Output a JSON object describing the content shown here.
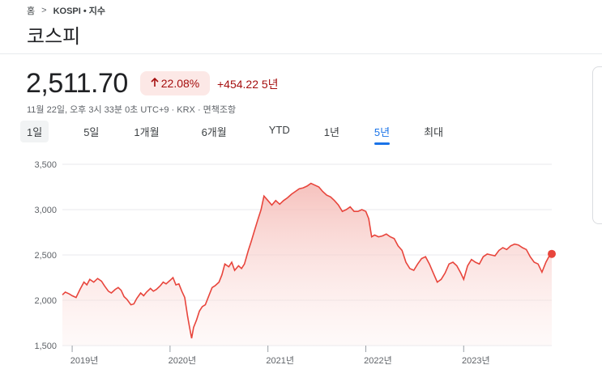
{
  "breadcrumb": {
    "home": "홈",
    "separator": ">",
    "path": "KOSPI • 지수"
  },
  "title": "코스피",
  "quote": {
    "price": "2,511.70",
    "change_percent": "22.08%",
    "change_abs": "+454.22 5년",
    "meta": "11월 22일, 오후 3시 33분 0초 UTC+9 · KRX · 면책조항"
  },
  "tabs": [
    {
      "label": "1일",
      "state": "highlight"
    },
    {
      "label": "5일"
    },
    {
      "label": "1개월"
    },
    {
      "label": "6개월"
    },
    {
      "label": "YTD"
    },
    {
      "label": "1년"
    },
    {
      "label": "5년",
      "state": "selected"
    },
    {
      "label": "최대"
    }
  ],
  "colors": {
    "negative_text": "#a50e0e",
    "chip_bg": "#fce8e6",
    "line": "#e8453c",
    "tab_selected": "#1a73e8",
    "grid": "#e8eaed"
  },
  "icons": {
    "change_arrow": "arrow-up-icon",
    "breadcrumb_sep": "chevron-right-icon"
  },
  "chart_data": {
    "type": "area",
    "ylim": [
      1500,
      3500
    ],
    "yticks": [
      {
        "value": 3500,
        "label": "3,500"
      },
      {
        "value": 3000,
        "label": "3,000"
      },
      {
        "value": 2500,
        "label": "2,500"
      },
      {
        "value": 2000,
        "label": "2,000"
      },
      {
        "value": 1500,
        "label": "1,500"
      }
    ],
    "xlim": [
      2018.9,
      2023.9
    ],
    "xticks": [
      {
        "value": 2019.0,
        "label": "2019년"
      },
      {
        "value": 2020.0,
        "label": "2020년"
      },
      {
        "value": 2021.0,
        "label": "2021년"
      },
      {
        "value": 2022.0,
        "label": "2022년"
      },
      {
        "value": 2023.0,
        "label": "2023년"
      }
    ],
    "grid": true,
    "series": [
      {
        "points": [
          [
            2018.9,
            2060
          ],
          [
            2018.93,
            2090
          ],
          [
            2018.97,
            2070
          ],
          [
            2019.0,
            2050
          ],
          [
            2019.04,
            2030
          ],
          [
            2019.08,
            2120
          ],
          [
            2019.12,
            2200
          ],
          [
            2019.15,
            2170
          ],
          [
            2019.18,
            2230
          ],
          [
            2019.22,
            2200
          ],
          [
            2019.26,
            2240
          ],
          [
            2019.3,
            2210
          ],
          [
            2019.33,
            2160
          ],
          [
            2019.37,
            2100
          ],
          [
            2019.4,
            2080
          ],
          [
            2019.44,
            2120
          ],
          [
            2019.47,
            2140
          ],
          [
            2019.5,
            2110
          ],
          [
            2019.53,
            2040
          ],
          [
            2019.56,
            2010
          ],
          [
            2019.6,
            1950
          ],
          [
            2019.63,
            1960
          ],
          [
            2019.66,
            2020
          ],
          [
            2019.7,
            2080
          ],
          [
            2019.73,
            2050
          ],
          [
            2019.76,
            2090
          ],
          [
            2019.8,
            2130
          ],
          [
            2019.83,
            2100
          ],
          [
            2019.86,
            2120
          ],
          [
            2019.9,
            2160
          ],
          [
            2019.93,
            2200
          ],
          [
            2019.96,
            2180
          ],
          [
            2020.0,
            2220
          ],
          [
            2020.03,
            2250
          ],
          [
            2020.06,
            2170
          ],
          [
            2020.09,
            2180
          ],
          [
            2020.12,
            2100
          ],
          [
            2020.15,
            2030
          ],
          [
            2020.18,
            1820
          ],
          [
            2020.2,
            1700
          ],
          [
            2020.22,
            1580
          ],
          [
            2020.24,
            1700
          ],
          [
            2020.27,
            1780
          ],
          [
            2020.3,
            1880
          ],
          [
            2020.33,
            1930
          ],
          [
            2020.36,
            1950
          ],
          [
            2020.4,
            2060
          ],
          [
            2020.43,
            2140
          ],
          [
            2020.46,
            2160
          ],
          [
            2020.5,
            2200
          ],
          [
            2020.53,
            2280
          ],
          [
            2020.56,
            2400
          ],
          [
            2020.6,
            2370
          ],
          [
            2020.63,
            2420
          ],
          [
            2020.66,
            2330
          ],
          [
            2020.7,
            2380
          ],
          [
            2020.73,
            2350
          ],
          [
            2020.76,
            2400
          ],
          [
            2020.8,
            2550
          ],
          [
            2020.83,
            2650
          ],
          [
            2020.86,
            2760
          ],
          [
            2020.9,
            2900
          ],
          [
            2020.93,
            3000
          ],
          [
            2020.96,
            3150
          ],
          [
            2021.0,
            3100
          ],
          [
            2021.04,
            3050
          ],
          [
            2021.08,
            3100
          ],
          [
            2021.12,
            3060
          ],
          [
            2021.16,
            3100
          ],
          [
            2021.2,
            3130
          ],
          [
            2021.24,
            3170
          ],
          [
            2021.28,
            3200
          ],
          [
            2021.32,
            3230
          ],
          [
            2021.36,
            3240
          ],
          [
            2021.4,
            3260
          ],
          [
            2021.44,
            3290
          ],
          [
            2021.48,
            3270
          ],
          [
            2021.52,
            3250
          ],
          [
            2021.56,
            3200
          ],
          [
            2021.6,
            3160
          ],
          [
            2021.64,
            3140
          ],
          [
            2021.68,
            3100
          ],
          [
            2021.72,
            3050
          ],
          [
            2021.76,
            2980
          ],
          [
            2021.8,
            3000
          ],
          [
            2021.84,
            3030
          ],
          [
            2021.88,
            2980
          ],
          [
            2021.92,
            2980
          ],
          [
            2021.96,
            3000
          ],
          [
            2022.0,
            2980
          ],
          [
            2022.03,
            2900
          ],
          [
            2022.06,
            2700
          ],
          [
            2022.09,
            2720
          ],
          [
            2022.13,
            2700
          ],
          [
            2022.17,
            2710
          ],
          [
            2022.21,
            2730
          ],
          [
            2022.25,
            2700
          ],
          [
            2022.29,
            2680
          ],
          [
            2022.33,
            2600
          ],
          [
            2022.37,
            2550
          ],
          [
            2022.41,
            2420
          ],
          [
            2022.45,
            2350
          ],
          [
            2022.49,
            2330
          ],
          [
            2022.53,
            2400
          ],
          [
            2022.57,
            2460
          ],
          [
            2022.61,
            2480
          ],
          [
            2022.65,
            2400
          ],
          [
            2022.69,
            2300
          ],
          [
            2022.73,
            2200
          ],
          [
            2022.77,
            2230
          ],
          [
            2022.81,
            2300
          ],
          [
            2022.85,
            2400
          ],
          [
            2022.89,
            2420
          ],
          [
            2022.93,
            2380
          ],
          [
            2022.97,
            2300
          ],
          [
            2023.0,
            2230
          ],
          [
            2023.04,
            2380
          ],
          [
            2023.08,
            2450
          ],
          [
            2023.12,
            2420
          ],
          [
            2023.16,
            2400
          ],
          [
            2023.2,
            2480
          ],
          [
            2023.24,
            2510
          ],
          [
            2023.28,
            2500
          ],
          [
            2023.32,
            2490
          ],
          [
            2023.36,
            2550
          ],
          [
            2023.4,
            2580
          ],
          [
            2023.44,
            2560
          ],
          [
            2023.48,
            2600
          ],
          [
            2023.52,
            2620
          ],
          [
            2023.56,
            2610
          ],
          [
            2023.6,
            2580
          ],
          [
            2023.64,
            2560
          ],
          [
            2023.68,
            2480
          ],
          [
            2023.72,
            2420
          ],
          [
            2023.76,
            2400
          ],
          [
            2023.8,
            2310
          ],
          [
            2023.84,
            2420
          ],
          [
            2023.88,
            2500
          ],
          [
            2023.9,
            2511.7
          ]
        ]
      }
    ]
  }
}
